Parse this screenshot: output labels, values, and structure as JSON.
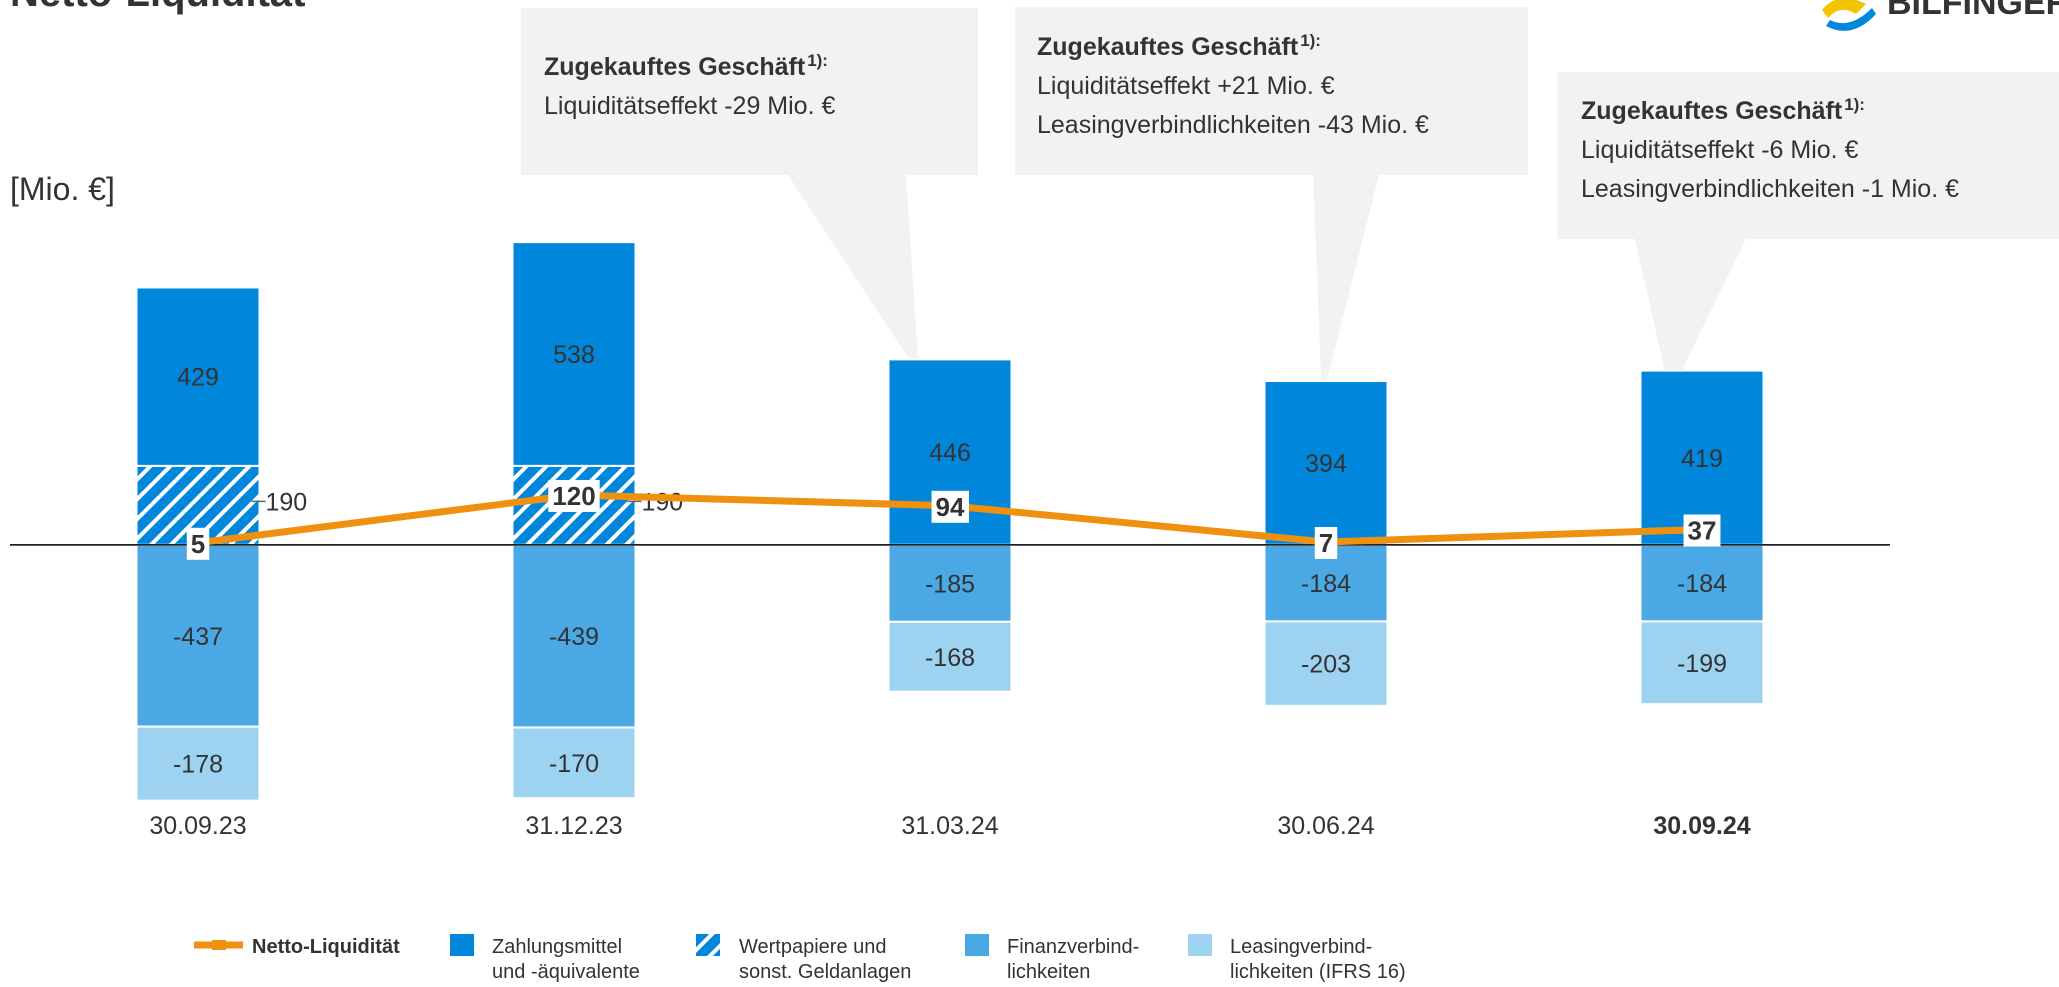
{
  "title": "Netto-Liquidität",
  "logo": "BILFINGER",
  "chart_data": {
    "type": "bar",
    "unit_label": "[Mio. €]",
    "categories": [
      "30.09.23",
      "31.12.23",
      "31.03.24",
      "30.06.24",
      "30.09.24"
    ],
    "highlight_index": 4,
    "ylim": [
      -700,
      1000
    ],
    "series": [
      {
        "name": "Zahlungsmittel\nund -äquivalente",
        "color": "#0087dc",
        "values": [
          429,
          538,
          446,
          394,
          419
        ]
      },
      {
        "name": "Wertpapiere und\nsonst. Geldanlagen",
        "color": "#0087dc",
        "pattern": "hatch",
        "label_position": "outside",
        "values": [
          190,
          190,
          null,
          null,
          null
        ]
      },
      {
        "name": "Finanzverbind-\nlichkeiten",
        "color": "#4aa8e4",
        "values": [
          -437,
          -439,
          -185,
          -184,
          -184
        ]
      },
      {
        "name": "Leasingverbind-\nlichkeiten (IFRS 16)",
        "color": "#9dd3f0",
        "values": [
          -178,
          -170,
          -168,
          -203,
          -199
        ]
      },
      {
        "name": "Netto-Liquidität",
        "type": "line",
        "color": "#f0900f",
        "values": [
          5,
          120,
          94,
          7,
          37
        ]
      }
    ],
    "annotations": [
      {
        "title": "Zugekauftes Geschäft",
        "note": "1):",
        "lines": [
          "Liquiditätseffekt -29 Mio. €"
        ]
      },
      {
        "title": "Zugekauftes Geschäft",
        "note": "1):",
        "lines": [
          "Liquiditätseffekt +21 Mio. €",
          "Leasingverbindlichkeiten -43 Mio. €"
        ]
      },
      {
        "title": "Zugekauftes Geschäft",
        "note": "1):",
        "lines": [
          "Liquiditätseffekt -6 Mio. €",
          "Leasingverbindlichkeiten -1 Mio. €"
        ]
      }
    ]
  }
}
